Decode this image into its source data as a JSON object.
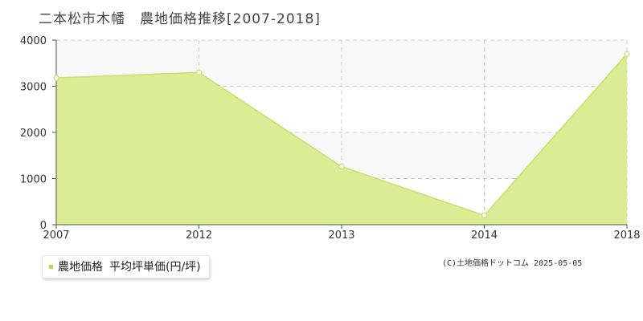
{
  "title": "二本松市木幡　農地価格推移[2007-2018]",
  "legend": {
    "series_label": "農地価格",
    "unit_label": "平均坪単価(円/坪)",
    "marker_color": "#b5d94a"
  },
  "copyright": "(C)土地価格ドットコム 2025-05-05",
  "colors": {
    "area_fill": "#dbec95",
    "line": "#c5e26e",
    "point_fill": "#ffffff",
    "grid": "#cccccc",
    "band": "#f8f8f8",
    "axis": "#555555"
  },
  "chart_data": {
    "type": "area",
    "x": [
      "2007",
      "2012",
      "2013",
      "2014",
      "2018"
    ],
    "series": [
      {
        "values": [
          3180,
          3300,
          1260,
          200,
          3700
        ]
      }
    ],
    "xlabel": "",
    "ylabel": "",
    "ylim": [
      0,
      4000
    ],
    "yticks": [
      "0",
      "1000",
      "2000",
      "3000",
      "4000"
    ],
    "grid": true
  }
}
